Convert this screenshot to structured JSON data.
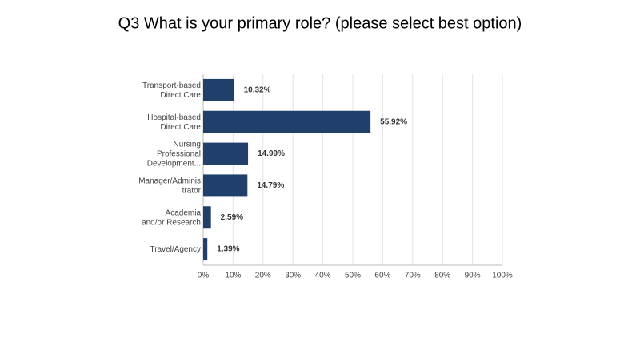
{
  "chart_data": {
    "type": "bar",
    "orientation": "horizontal",
    "title": "Q3 What is your primary role? (please select best option)",
    "categories": [
      [
        "Transport-based",
        "Direct Care"
      ],
      [
        "Hospital-based",
        "Direct Care"
      ],
      [
        "Nursing",
        "Professional",
        "Development..."
      ],
      [
        "Manager/Adminis",
        "trator"
      ],
      [
        "Academia",
        "and/or Research"
      ],
      [
        "Travel/Agency"
      ]
    ],
    "values": [
      10.32,
      55.92,
      14.99,
      14.79,
      2.59,
      1.39
    ],
    "value_labels": [
      "10.32%",
      "55.92%",
      "14.99%",
      "14.79%",
      "2.59%",
      "1.39%"
    ],
    "color": "#213f6b",
    "xlim": [
      0,
      100
    ],
    "xticks": [
      {
        "value": 0,
        "label": "0%"
      },
      {
        "value": 10,
        "label": "10%"
      },
      {
        "value": 20,
        "label": "20%"
      },
      {
        "value": 30,
        "label": "30%"
      },
      {
        "value": 40,
        "label": "40%"
      },
      {
        "value": 50,
        "label": "50%"
      },
      {
        "value": 60,
        "label": "60%"
      },
      {
        "value": 70,
        "label": "70%"
      },
      {
        "value": 80,
        "label": "80%"
      },
      {
        "value": 90,
        "label": "90%"
      },
      {
        "value": 100,
        "label": "100%"
      }
    ],
    "grid": true
  }
}
